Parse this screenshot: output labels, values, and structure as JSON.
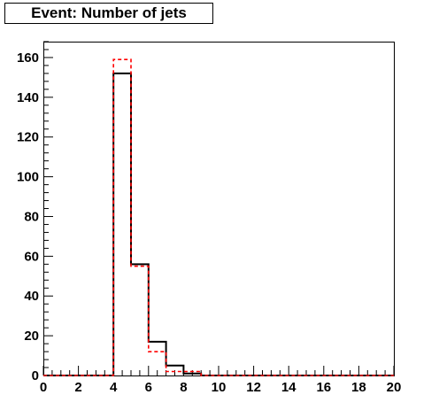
{
  "chart_data": {
    "type": "histogram",
    "title": "Event: Number of jets",
    "xlabel": "",
    "ylabel": "",
    "xlim": [
      0,
      20
    ],
    "ylim": [
      0,
      168
    ],
    "x_ticks": [
      0,
      2,
      4,
      6,
      8,
      10,
      12,
      14,
      16,
      18,
      20
    ],
    "y_ticks": [
      0,
      20,
      40,
      60,
      80,
      100,
      120,
      140,
      160
    ],
    "bin_width": 1,
    "bin_edges": [
      0,
      1,
      2,
      3,
      4,
      5,
      6,
      7,
      8,
      9,
      10,
      11,
      12,
      13,
      14,
      15,
      16,
      17,
      18,
      19,
      20
    ],
    "series": [
      {
        "style": "solid-black",
        "color": "#000000",
        "values": [
          0,
          0,
          0,
          0,
          152,
          56,
          17,
          5,
          1,
          0,
          0,
          0,
          0,
          0,
          0,
          0,
          0,
          0,
          0,
          0
        ]
      },
      {
        "style": "dashed-red",
        "color": "#ff0000",
        "values": [
          0,
          0,
          0,
          0,
          159,
          55,
          12,
          2,
          2,
          0,
          0,
          0,
          0,
          0,
          0,
          0,
          0,
          0,
          0,
          0
        ]
      }
    ],
    "grid": false,
    "legend": "none"
  }
}
